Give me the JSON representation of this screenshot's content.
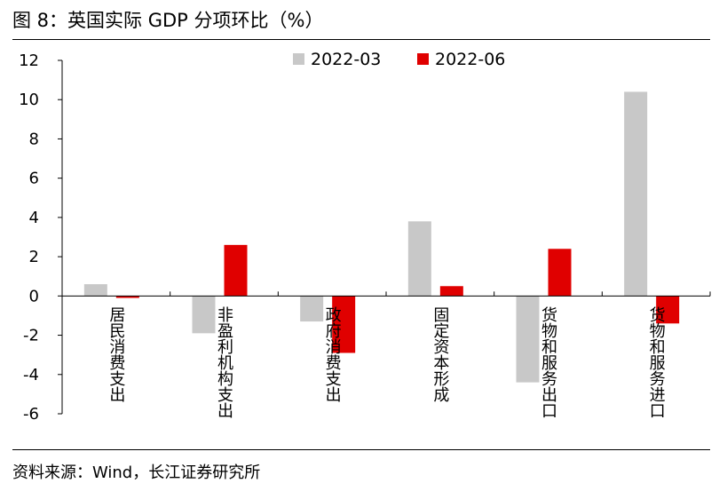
{
  "figure": {
    "title": "图 8：英国实际 GDP 分项环比（%）",
    "source": "资料来源：Wind，长江证券研究所"
  },
  "chart_data": {
    "type": "bar",
    "title": "英国实际 GDP 分项环比（%）",
    "xlabel": "",
    "ylabel": "%",
    "ylim": [
      -6,
      12
    ],
    "yticks": [
      12,
      10,
      8,
      6,
      4,
      2,
      0,
      -2,
      -4,
      -6
    ],
    "grid": false,
    "legend_position": "top-center",
    "categories": [
      "居民消费支出",
      "非盈利机构支出",
      "政府消费支出",
      "固定资本形成",
      "货物和服务出口",
      "货物和服务进口"
    ],
    "series": [
      {
        "name": "2022-03",
        "color": "#c8c8c8",
        "values": [
          0.6,
          -1.9,
          -1.3,
          3.8,
          -4.4,
          10.4
        ]
      },
      {
        "name": "2022-06",
        "color": "#e00000",
        "values": [
          -0.1,
          2.6,
          -2.9,
          0.5,
          2.4,
          -1.4
        ]
      }
    ]
  }
}
